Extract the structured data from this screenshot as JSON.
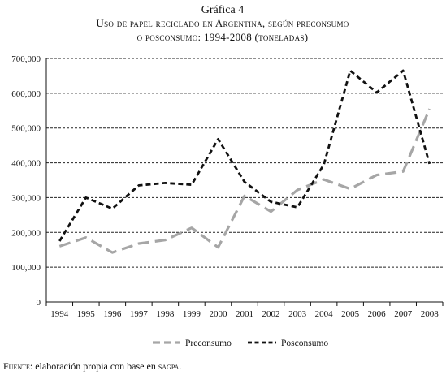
{
  "figure": {
    "label": "Gráfica 4",
    "title_line1": "Uso de papel reciclado en Argentina, según preconsumo",
    "title_line2": "o posconsumo: 1994-2008 (toneladas)",
    "source_prefix": "Fuente",
    "source_text": ": elaboración propia con base en ",
    "source_org": "sagpa",
    "source_end": "."
  },
  "chart_data": {
    "type": "line",
    "title": "Uso de papel reciclado en Argentina, según preconsumo o posconsumo: 1994-2008 (toneladas)",
    "xlabel": "",
    "ylabel": "",
    "x": [
      "1994",
      "1995",
      "1996",
      "1997",
      "1998",
      "1999",
      "2000",
      "2001",
      "2002",
      "2003",
      "2004",
      "2005",
      "2006",
      "2007",
      "2008"
    ],
    "y_ticks": [
      "0",
      "100,000",
      "200,000",
      "300,000",
      "400,000",
      "500,000",
      "600,000",
      "700,000"
    ],
    "ylim": [
      0,
      700000
    ],
    "grid": "horizontal dashed",
    "legend_position": "bottom",
    "series": [
      {
        "name": "Preconsumo",
        "color": "#a6a6a6",
        "style": "dashed",
        "values": [
          160000,
          185000,
          142000,
          168000,
          178000,
          213000,
          157000,
          305000,
          260000,
          322000,
          352000,
          325000,
          365000,
          375000,
          555000
        ]
      },
      {
        "name": "Posconsumo",
        "color": "#111111",
        "style": "dashed",
        "values": [
          175000,
          300000,
          268000,
          335000,
          342000,
          337000,
          468000,
          345000,
          288000,
          272000,
          395000,
          665000,
          602000,
          665000,
          397000
        ]
      }
    ]
  }
}
